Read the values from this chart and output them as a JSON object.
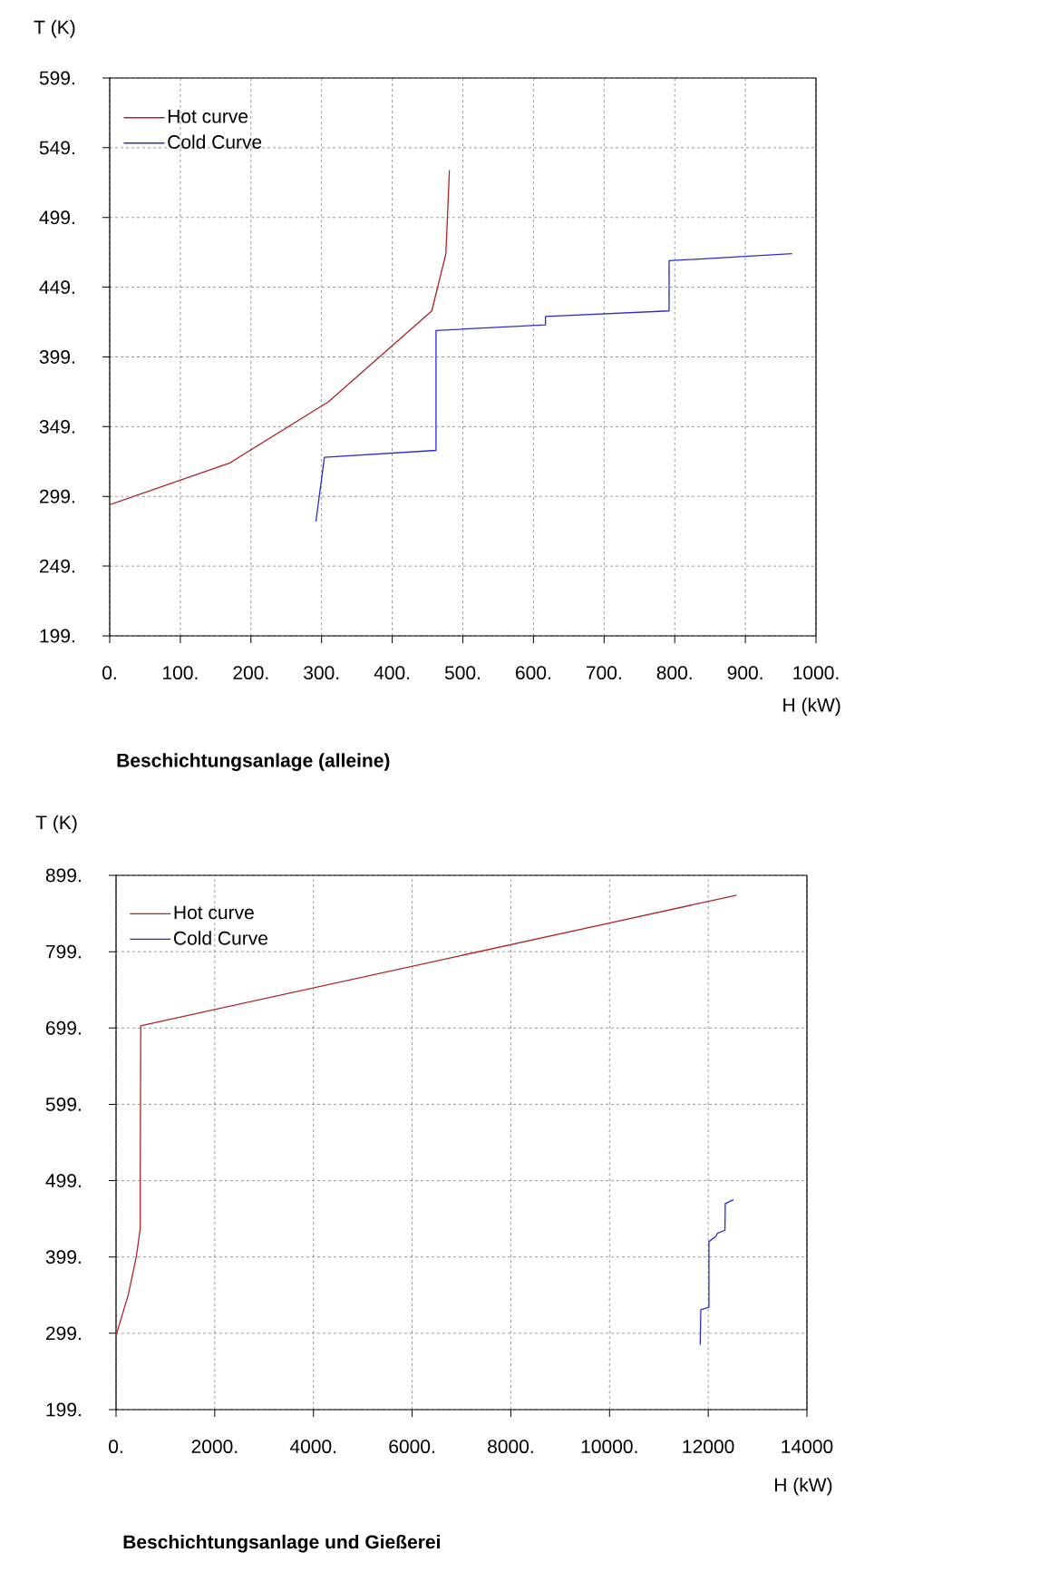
{
  "chart_data": [
    {
      "type": "line",
      "title": "Beschichtungsanlage (alleine)",
      "xlabel": "H (kW)",
      "ylabel": "T (K)",
      "xlim": [
        0,
        1000
      ],
      "ylim": [
        199,
        599
      ],
      "xticks": [
        {
          "value": 0,
          "label": "0."
        },
        {
          "value": 100,
          "label": "100."
        },
        {
          "value": 200,
          "label": "200."
        },
        {
          "value": 300,
          "label": "300."
        },
        {
          "value": 400,
          "label": "400."
        },
        {
          "value": 500,
          "label": "500."
        },
        {
          "value": 600,
          "label": "600."
        },
        {
          "value": 700,
          "label": "700."
        },
        {
          "value": 800,
          "label": "800."
        },
        {
          "value": 900,
          "label": "900."
        },
        {
          "value": 1000,
          "label": "1000."
        }
      ],
      "yticks": [
        {
          "value": 199,
          "label": "199."
        },
        {
          "value": 249,
          "label": "249."
        },
        {
          "value": 299,
          "label": "299."
        },
        {
          "value": 349,
          "label": "349."
        },
        {
          "value": 399,
          "label": "399."
        },
        {
          "value": 449,
          "label": "449."
        },
        {
          "value": 499,
          "label": "499."
        },
        {
          "value": 549,
          "label": "549."
        },
        {
          "value": 599,
          "label": "599."
        }
      ],
      "grid": true,
      "legend": "top left",
      "series": [
        {
          "name": "Hot curve",
          "color": "#b22222",
          "x": [
            0,
            170,
            310,
            456,
            476,
            481
          ],
          "values": [
            293,
            323,
            367,
            432,
            473,
            533
          ]
        },
        {
          "name": "Cold Curve",
          "color": "#2b2bd6",
          "x": [
            292,
            304,
            462,
            462,
            617,
            617,
            792,
            792,
            966
          ],
          "values": [
            281,
            327,
            332,
            418,
            422,
            428,
            432,
            468,
            473
          ]
        }
      ]
    },
    {
      "type": "line",
      "title": "Beschichtungsanlage und Gießerei",
      "xlabel": "H (kW)",
      "ylabel": "T (K)",
      "xlim": [
        0,
        14000
      ],
      "ylim": [
        199,
        899
      ],
      "xticks": [
        {
          "value": 0,
          "label": "0."
        },
        {
          "value": 2000,
          "label": "2000."
        },
        {
          "value": 4000,
          "label": "4000."
        },
        {
          "value": 6000,
          "label": "6000."
        },
        {
          "value": 8000,
          "label": "8000."
        },
        {
          "value": 10000,
          "label": "10000."
        },
        12000,
        14000
      ],
      "yticks": [
        {
          "value": 199,
          "label": "199."
        },
        {
          "value": 299,
          "label": "299."
        },
        {
          "value": 399,
          "label": "399."
        },
        {
          "value": 499,
          "label": "499."
        },
        {
          "value": 599,
          "label": "599."
        },
        {
          "value": 699,
          "label": "699."
        },
        {
          "value": 799,
          "label": "799."
        },
        {
          "value": 899,
          "label": "899."
        }
      ],
      "grid": true,
      "legend": "top left",
      "series": [
        {
          "name": "Hot curve",
          "color": "#b22222",
          "x": [
            0,
            250,
            410,
            490,
            490,
            500,
            12575
          ],
          "values": [
            296,
            350,
            399,
            436,
            500,
            702,
            873
          ]
        },
        {
          "name": "Cold Curve",
          "color": "#2b2bd6",
          "x": [
            11837,
            11850,
            12014,
            12014,
            12155,
            12186,
            12339,
            12345,
            12510
          ],
          "values": [
            284,
            330,
            333,
            419,
            426,
            430,
            434,
            469,
            474
          ]
        }
      ]
    }
  ]
}
